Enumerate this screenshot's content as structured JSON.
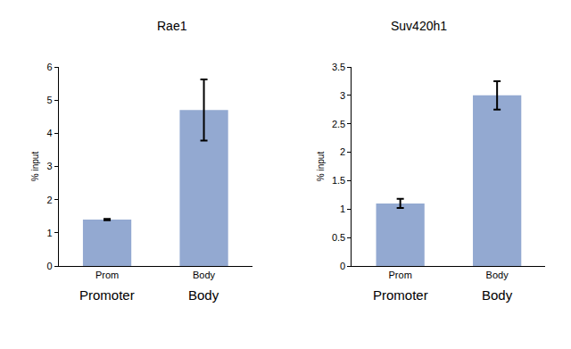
{
  "chart_data": [
    {
      "type": "bar",
      "title": "Rae1",
      "y_label": "% input",
      "categories": [
        "Prom",
        "Body"
      ],
      "values": [
        1.4,
        4.7
      ],
      "errors": [
        0.02,
        0.92
      ],
      "annotations": [
        "Promoter",
        "Body"
      ],
      "color": "#93a9d1",
      "ylim": [
        0,
        6
      ],
      "yticks": [
        0,
        1,
        2,
        3,
        4,
        5,
        6
      ],
      "grid": false
    },
    {
      "type": "bar",
      "title": "Suv420h1",
      "y_label": "% input",
      "categories": [
        "Prom",
        "Body"
      ],
      "values": [
        1.1,
        3.0
      ],
      "errors": [
        0.08,
        0.25
      ],
      "annotations": [
        "Promoter",
        "Body"
      ],
      "color": "#93a9d1",
      "ylim": [
        0,
        3.5
      ],
      "yticks": [
        0,
        0.5,
        1,
        1.5,
        2,
        2.5,
        3,
        3.5
      ],
      "grid": false
    }
  ]
}
